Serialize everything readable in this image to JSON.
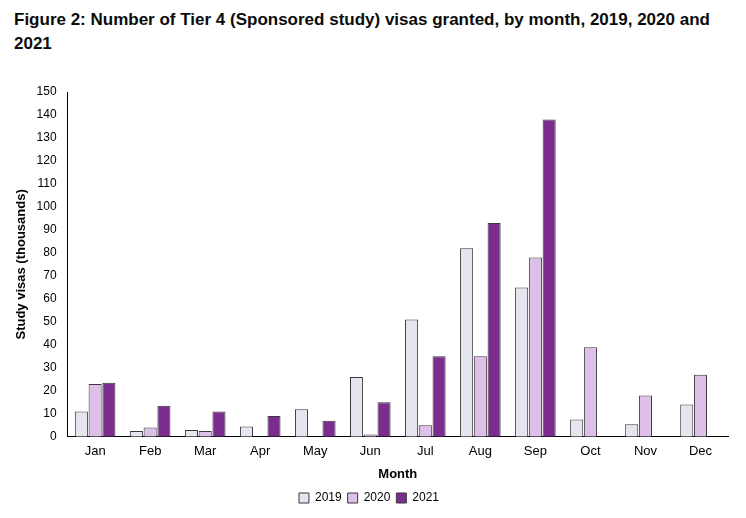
{
  "chart_data": {
    "type": "bar",
    "title": "Figure 2: Number of Tier 4 (Sponsored study) visas granted, by month, 2019, 2020 and 2021",
    "x_label": "Month",
    "y_label": "Study visas (thousands)",
    "categories": [
      "Jan",
      "Feb",
      "Mar",
      "Apr",
      "May",
      "Jun",
      "Jul",
      "Aug",
      "Sep",
      "Oct",
      "Nov",
      "Dec"
    ],
    "series": [
      {
        "name": "2019",
        "color": "#e6e4ee",
        "values": [
          11,
          2.5,
          3,
          4.5,
          12,
          26,
          51,
          82,
          65,
          7.5,
          5.5,
          14
        ]
      },
      {
        "name": "2020",
        "color": "#dcc0e8",
        "values": [
          23,
          4,
          2.5,
          0,
          0,
          1,
          5,
          35,
          78,
          39,
          18,
          27
        ]
      },
      {
        "name": "2021",
        "color": "#7b2d8e",
        "values": [
          23.5,
          13.5,
          11,
          9,
          7,
          15,
          35,
          93,
          138,
          null,
          null,
          null
        ]
      }
    ],
    "ylim": [
      0,
      150
    ],
    "yticks": [
      0,
      10,
      20,
      30,
      40,
      50,
      60,
      70,
      80,
      90,
      100,
      110,
      120,
      130,
      140,
      150
    ],
    "grid": false,
    "legend": "bottom"
  }
}
